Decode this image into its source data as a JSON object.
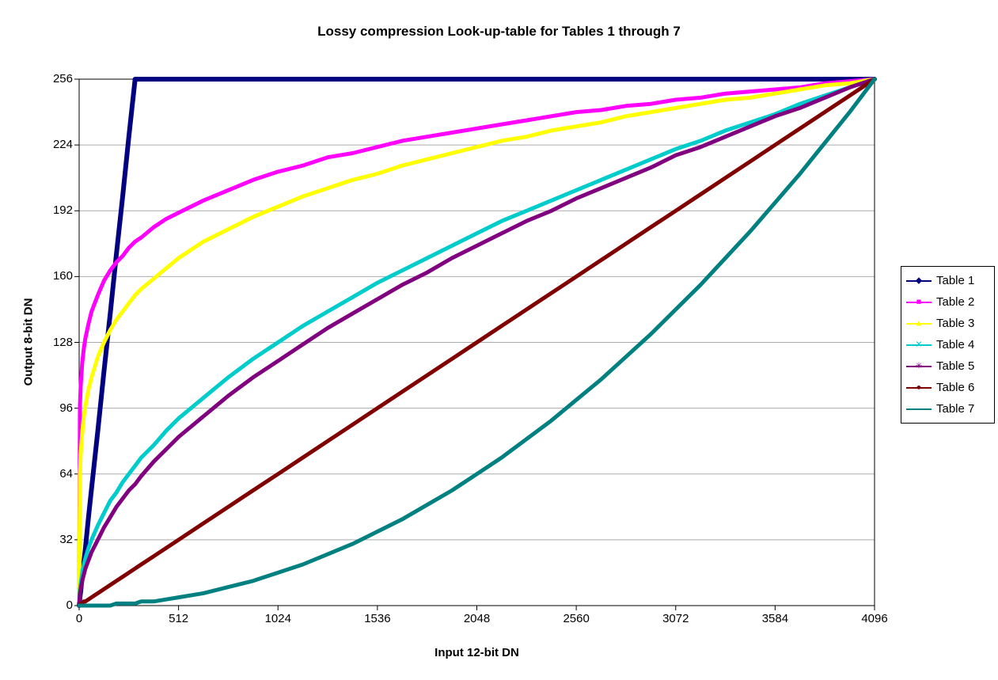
{
  "chart_data": {
    "type": "line",
    "title": "Lossy compression Look-up-table for Tables 1 through 7",
    "xlabel": "Input 12-bit DN",
    "ylabel": "Output 8-bit DN",
    "xlim": [
      0,
      4096
    ],
    "ylim": [
      0,
      256
    ],
    "x_ticks": [
      0,
      512,
      1024,
      1536,
      2048,
      2560,
      3072,
      3584,
      4096
    ],
    "y_ticks": [
      0,
      32,
      64,
      96,
      128,
      160,
      192,
      224,
      256
    ],
    "grid": "horizontal",
    "legend_position": "right",
    "background": "#FFFFFF",
    "gridline_color": "#ABABAB",
    "x": [
      0,
      4,
      8,
      16,
      24,
      32,
      48,
      64,
      96,
      128,
      160,
      192,
      224,
      256,
      288,
      320,
      384,
      448,
      512,
      640,
      768,
      896,
      1024,
      1152,
      1280,
      1408,
      1536,
      1664,
      1792,
      1920,
      2048,
      2176,
      2304,
      2432,
      2560,
      2688,
      2816,
      2944,
      3072,
      3200,
      3328,
      3456,
      3584,
      3712,
      3840,
      3968,
      4096
    ],
    "series": [
      {
        "name": "Table 1",
        "color": "#000080",
        "marker": "diamond",
        "marker_glyph": "◆",
        "values": [
          0,
          4,
          7,
          14,
          21,
          28,
          43,
          57,
          85,
          114,
          142,
          171,
          199,
          228,
          256,
          256,
          256,
          256,
          256,
          256,
          256,
          256,
          256,
          256,
          256,
          256,
          256,
          256,
          256,
          256,
          256,
          256,
          256,
          256,
          256,
          256,
          256,
          256,
          256,
          256,
          256,
          256,
          256,
          256,
          256,
          256,
          256
        ]
      },
      {
        "name": "Table 2",
        "color": "#FF00FF",
        "marker": "square",
        "marker_glyph": "■",
        "values": [
          0,
          97,
          107,
          118,
          125,
          130,
          137,
          143,
          151,
          158,
          163,
          167,
          170,
          174,
          177,
          179,
          184,
          188,
          191,
          197,
          202,
          207,
          211,
          214,
          218,
          220,
          223,
          226,
          228,
          230,
          232,
          234,
          236,
          238,
          240,
          241,
          243,
          244,
          246,
          247,
          249,
          250,
          251,
          252,
          254,
          255,
          256
        ]
      },
      {
        "name": "Table 3",
        "color": "#FFFF00",
        "marker": "triangle",
        "marker_glyph": "▲",
        "values": [
          0,
          64,
          74,
          84,
          92,
          97,
          105,
          111,
          121,
          128,
          134,
          139,
          143,
          147,
          151,
          154,
          159,
          164,
          169,
          177,
          183,
          189,
          194,
          199,
          203,
          207,
          210,
          214,
          217,
          220,
          223,
          226,
          228,
          231,
          233,
          235,
          238,
          240,
          242,
          244,
          246,
          247,
          249,
          251,
          253,
          254,
          256
        ]
      },
      {
        "name": "Table 4",
        "color": "#00CCCC",
        "marker": "x",
        "marker_glyph": "✕",
        "values": [
          0,
          8,
          11,
          16,
          20,
          23,
          28,
          32,
          39,
          45,
          51,
          55,
          60,
          64,
          68,
          72,
          78,
          85,
          91,
          101,
          111,
          120,
          128,
          136,
          143,
          150,
          157,
          163,
          169,
          175,
          181,
          187,
          192,
          197,
          202,
          207,
          212,
          217,
          222,
          226,
          231,
          235,
          239,
          244,
          248,
          252,
          256
        ]
      },
      {
        "name": "Table 5",
        "color": "#800080",
        "marker": "asterisk",
        "marker_glyph": "✳",
        "values": [
          0,
          6,
          8,
          12,
          15,
          18,
          22,
          26,
          32,
          38,
          43,
          48,
          52,
          56,
          59,
          63,
          70,
          76,
          82,
          92,
          102,
          111,
          119,
          127,
          135,
          142,
          149,
          156,
          162,
          169,
          175,
          181,
          187,
          192,
          198,
          203,
          208,
          213,
          219,
          223,
          228,
          233,
          238,
          242,
          247,
          252,
          256
        ]
      },
      {
        "name": "Table 6",
        "color": "#800000",
        "marker": "circle",
        "marker_glyph": "●",
        "values": [
          0,
          0,
          1,
          1,
          2,
          2,
          3,
          4,
          6,
          8,
          10,
          12,
          14,
          16,
          18,
          20,
          24,
          28,
          32,
          40,
          48,
          56,
          64,
          72,
          80,
          88,
          96,
          104,
          112,
          120,
          128,
          136,
          144,
          152,
          160,
          168,
          176,
          184,
          192,
          200,
          208,
          216,
          224,
          232,
          240,
          248,
          256
        ]
      },
      {
        "name": "Table 7",
        "color": "#008080",
        "marker": "dash",
        "marker_glyph": "–",
        "values": [
          0,
          0,
          0,
          0,
          0,
          0,
          0,
          0,
          0,
          0,
          0,
          1,
          1,
          1,
          1,
          2,
          2,
          3,
          4,
          6,
          9,
          12,
          16,
          20,
          25,
          30,
          36,
          42,
          49,
          56,
          64,
          72,
          81,
          90,
          100,
          110,
          121,
          132,
          144,
          156,
          169,
          182,
          196,
          210,
          225,
          240,
          256
        ]
      }
    ]
  }
}
